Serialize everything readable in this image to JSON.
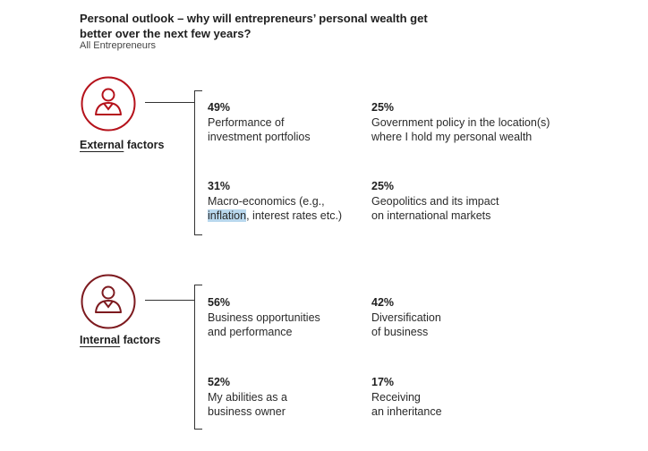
{
  "title": "Personal outlook – why will entrepreneurs’ personal wealth get better over the next few years?",
  "subtitle": "All Entrepreneurs",
  "accent_color": "#b5121b",
  "groups": [
    {
      "icon": "person-icon",
      "label_underlined": "External",
      "label_rest": " factors",
      "stats": [
        {
          "pct": "49%",
          "text": "Performance of\ninvestment portfolios"
        },
        {
          "pct": "25%",
          "text": "Government policy in the location(s)\nwhere I hold my personal wealth"
        },
        {
          "pct": "31%",
          "text_line1": "Macro-economics (e.g.,",
          "text_highlight": "inflation",
          "text_rest": ", interest rates etc.)"
        },
        {
          "pct": "25%",
          "text": "Geopolitics and its impact\non international markets"
        }
      ]
    },
    {
      "icon": "person-icon",
      "label_underlined": "Internal",
      "label_rest": " factors",
      "stats": [
        {
          "pct": "56%",
          "text": "Business opportunities\nand performance"
        },
        {
          "pct": "42%",
          "text": "Diversification\nof business"
        },
        {
          "pct": "52%",
          "text": "My abilities as a\nbusiness owner"
        },
        {
          "pct": "17%",
          "text": "Receiving\nan inheritance"
        }
      ]
    }
  ]
}
